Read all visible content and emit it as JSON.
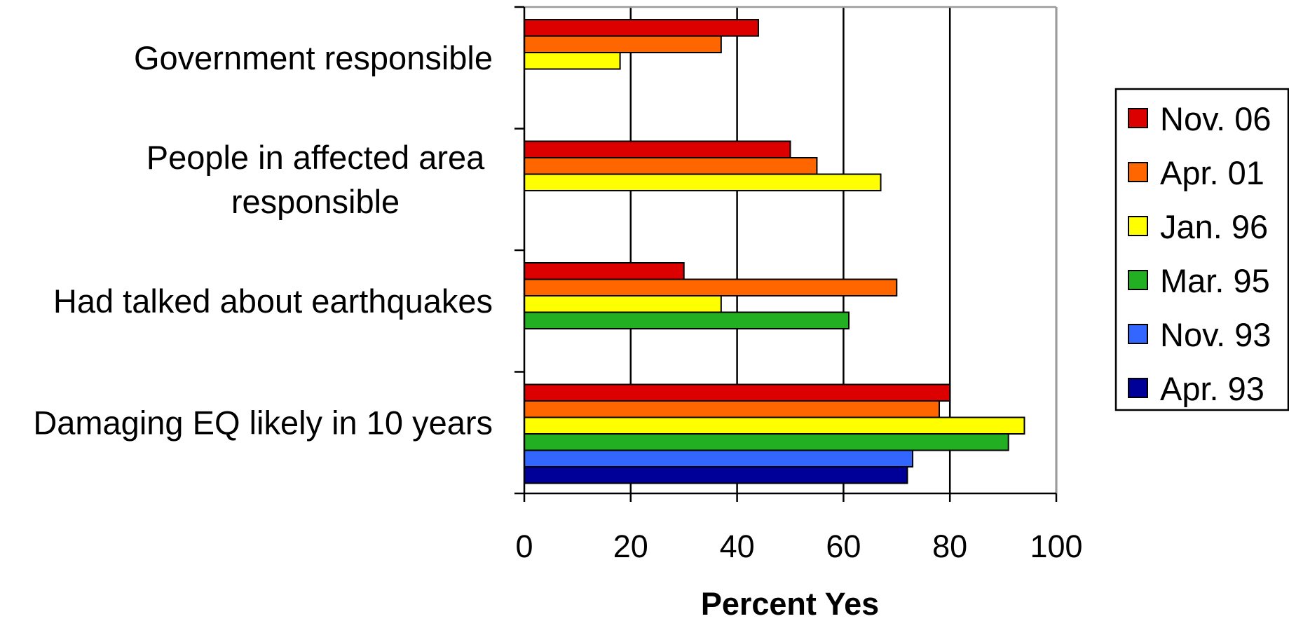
{
  "chart_data": {
    "type": "bar",
    "orientation": "horizontal",
    "categories": [
      "Government responsible",
      "People in affected area responsible",
      "Had talked about earthquakes",
      "Damaging EQ likely in 10 years"
    ],
    "category_lines": [
      [
        "Government responsible"
      ],
      [
        "People in affected area",
        "responsible"
      ],
      [
        "Had talked about earthquakes"
      ],
      [
        "Damaging EQ likely in 10 years"
      ]
    ],
    "series": [
      {
        "name": "Nov. 06",
        "color": "#dd0000",
        "values": [
          44,
          50,
          30,
          80
        ]
      },
      {
        "name": "Apr. 01",
        "color": "#ff6600",
        "values": [
          37,
          55,
          70,
          78
        ]
      },
      {
        "name": "Jan. 96",
        "color": "#ffff00",
        "values": [
          18,
          67,
          37,
          94
        ]
      },
      {
        "name": "Mar. 95",
        "color": "#22b022",
        "values": [
          null,
          null,
          61,
          91
        ]
      },
      {
        "name": "Nov. 93",
        "color": "#3366ff",
        "values": [
          null,
          null,
          null,
          73
        ]
      },
      {
        "name": "Apr. 93",
        "color": "#000099",
        "values": [
          null,
          null,
          null,
          72
        ]
      }
    ],
    "xlabel": "Percent Yes",
    "ylabel": "",
    "title": "",
    "xlim": [
      0,
      100
    ],
    "x_ticks": [
      "0",
      "20",
      "40",
      "60",
      "80",
      "100"
    ],
    "x_tick_values": [
      0,
      20,
      40,
      60,
      80,
      100
    ],
    "grid": "vertical",
    "legend_position": "right"
  }
}
